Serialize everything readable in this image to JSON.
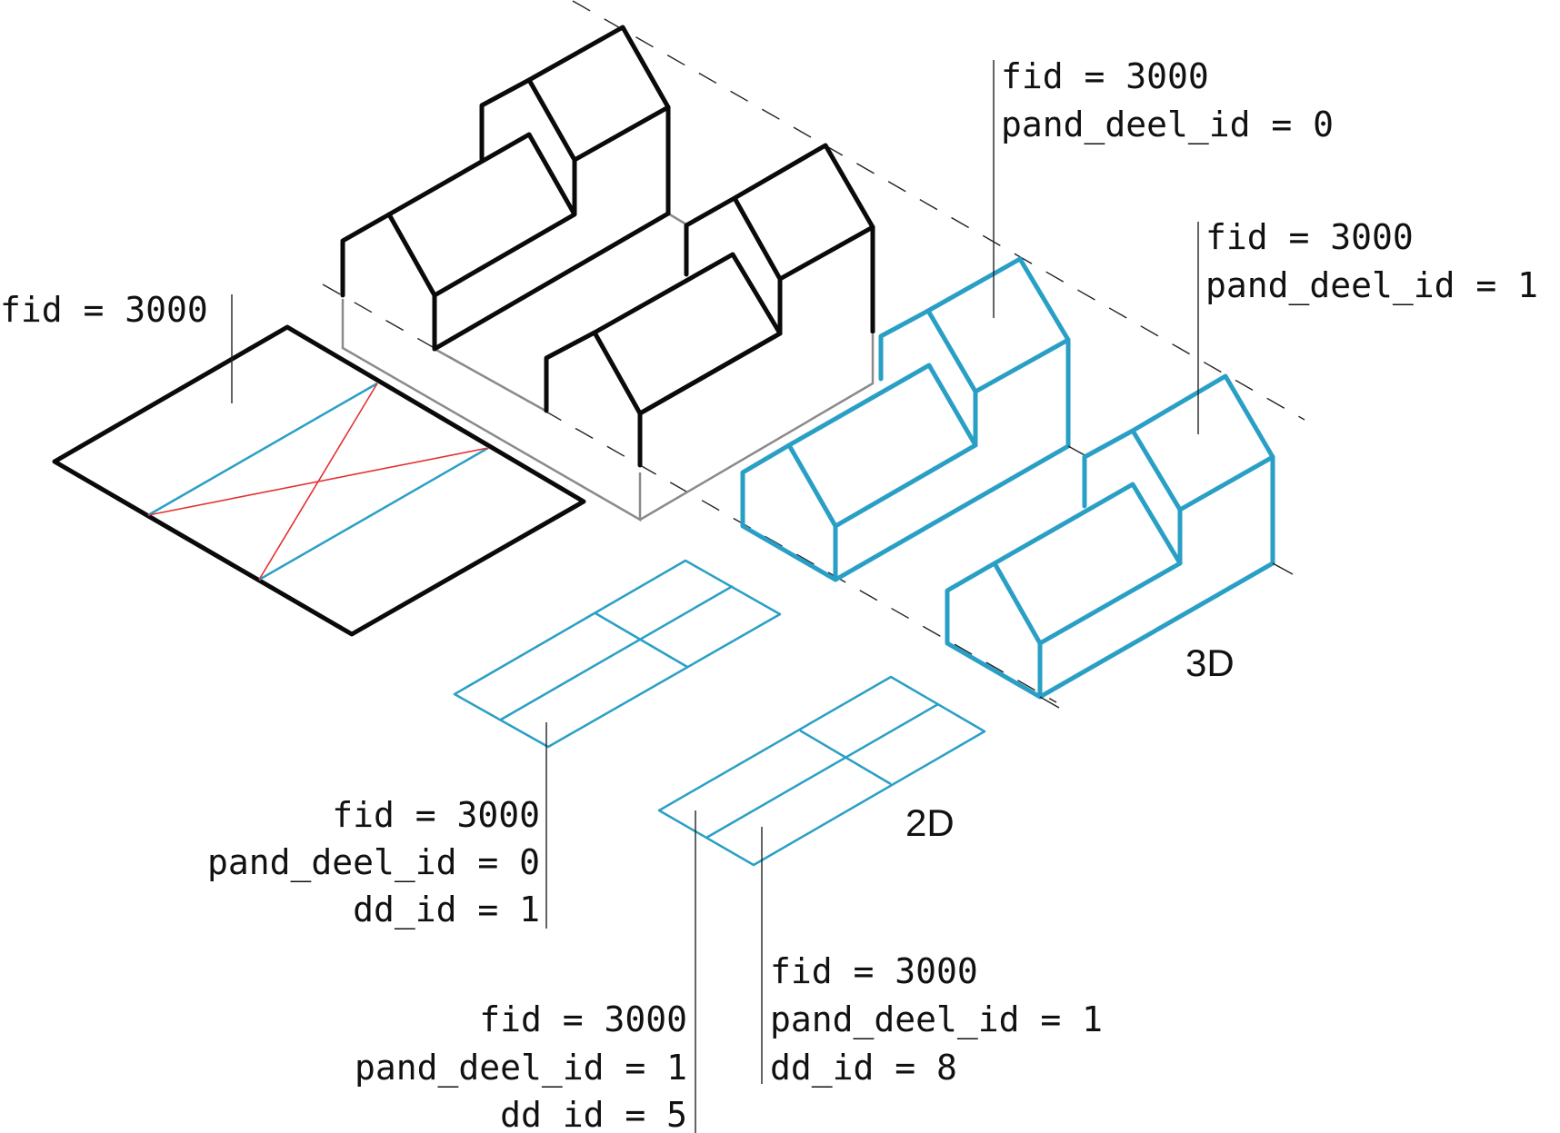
{
  "labels": {
    "footprint": {
      "lines": [
        "fid = 3000"
      ]
    },
    "solid_part0": {
      "lines": [
        "fid = 3000",
        "pand_deel_id = 0"
      ]
    },
    "solid_part1": {
      "lines": [
        "fid = 3000",
        "pand_deel_id = 1"
      ]
    },
    "flat_part0_dd1": {
      "lines": [
        "fid = 3000",
        "pand_deel_id = 0",
        "dd_id = 1"
      ]
    },
    "flat_part1_dd5": {
      "lines": [
        "fid = 3000",
        "pand_deel_id = 1",
        "dd_id = 5"
      ]
    },
    "flat_part1_dd8": {
      "lines": [
        "fid = 3000",
        "pand_deel_id = 1",
        "dd_id = 8"
      ]
    }
  },
  "section_labels": {
    "three_d": "3D",
    "two_d": "2D"
  },
  "colors": {
    "outline": "#0a0a0a",
    "part": "#2a9fc6",
    "split": "#e53030",
    "hidden": "#8a8a8a"
  }
}
